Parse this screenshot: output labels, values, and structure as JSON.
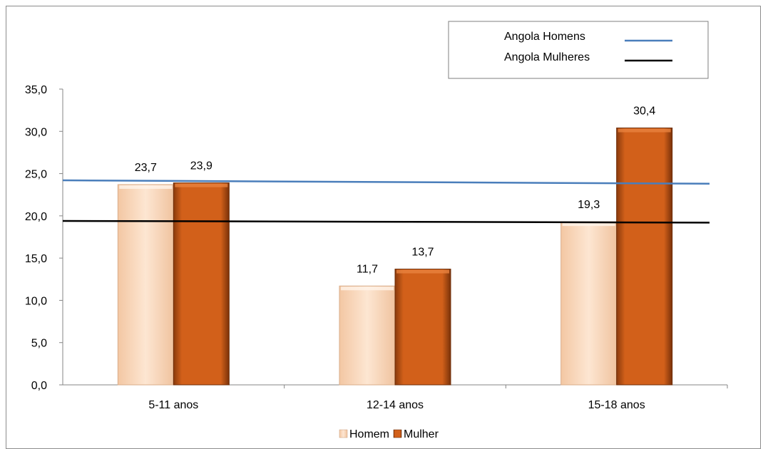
{
  "chart_data": {
    "type": "bar",
    "categories": [
      "5-11 anos",
      "12-14 anos",
      "15-18 anos"
    ],
    "series": [
      {
        "name": "Homem",
        "values": [
          23.7,
          11.7,
          19.3
        ],
        "color": "#fcd9bd"
      },
      {
        "name": "Mulher",
        "values": [
          23.9,
          13.7,
          30.4
        ],
        "color": "#d2601a"
      }
    ],
    "data_labels": {
      "Homem": [
        "23,7",
        "11,7",
        "19,3"
      ],
      "Mulher": [
        "23,9",
        "13,7",
        "30,4"
      ]
    },
    "reference_lines": [
      {
        "name": "Angola Homens",
        "y_start": 24.2,
        "y_end": 23.8,
        "color": "#4a7ebb"
      },
      {
        "name": "Angola Mulheres",
        "y_start": 19.4,
        "y_end": 19.2,
        "color": "#000000"
      }
    ],
    "ylim": [
      0,
      35
    ],
    "yticks": [
      0,
      5,
      10,
      15,
      20,
      25,
      30,
      35
    ],
    "ytick_labels": [
      "0,0",
      "5,0",
      "10,0",
      "15,0",
      "20,0",
      "25,0",
      "30,0",
      "35,0"
    ],
    "title": "",
    "xlabel": "",
    "ylabel": "",
    "legend_position": "bottom",
    "reference_legend_position": "top-right"
  }
}
